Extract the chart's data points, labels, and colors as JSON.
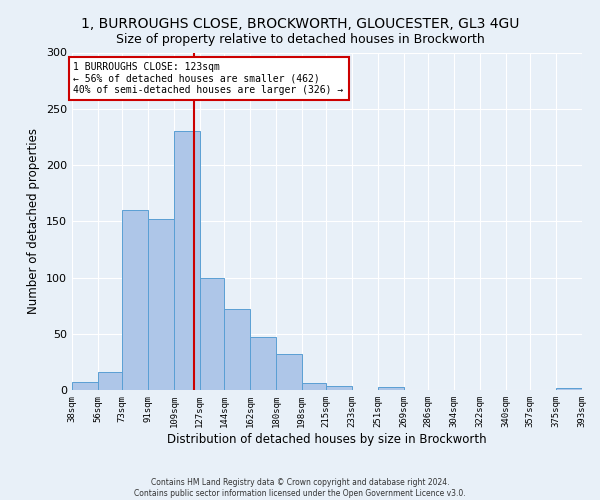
{
  "title1": "1, BURROUGHS CLOSE, BROCKWORTH, GLOUCESTER, GL3 4GU",
  "title2": "Size of property relative to detached houses in Brockworth",
  "xlabel": "Distribution of detached houses by size in Brockworth",
  "ylabel": "Number of detached properties",
  "footnote1": "Contains HM Land Registry data © Crown copyright and database right 2024.",
  "footnote2": "Contains public sector information licensed under the Open Government Licence v3.0.",
  "bin_labels": [
    "38sqm",
    "56sqm",
    "73sqm",
    "91sqm",
    "109sqm",
    "127sqm",
    "144sqm",
    "162sqm",
    "180sqm",
    "198sqm",
    "215sqm",
    "233sqm",
    "251sqm",
    "269sqm",
    "286sqm",
    "304sqm",
    "322sqm",
    "340sqm",
    "357sqm",
    "375sqm",
    "393sqm"
  ],
  "bin_edges": [
    38,
    56,
    73,
    91,
    109,
    127,
    144,
    162,
    180,
    198,
    215,
    233,
    251,
    269,
    286,
    304,
    322,
    340,
    357,
    375,
    393
  ],
  "bar_heights": [
    7,
    16,
    160,
    152,
    230,
    100,
    72,
    47,
    32,
    6,
    4,
    0,
    3,
    0,
    0,
    0,
    0,
    0,
    0,
    2,
    0
  ],
  "bar_color": "#aec6e8",
  "bar_edge_color": "#5a9fd4",
  "property_size": 123,
  "annotation_title": "1 BURROUGHS CLOSE: 123sqm",
  "annotation_line1": "← 56% of detached houses are smaller (462)",
  "annotation_line2": "40% of semi-detached houses are larger (326) →",
  "annotation_box_color": "#ffffff",
  "annotation_box_edge": "#cc0000",
  "vline_color": "#cc0000",
  "ylim": [
    0,
    300
  ],
  "yticks": [
    0,
    50,
    100,
    150,
    200,
    250,
    300
  ],
  "background_color": "#e8f0f8",
  "grid_color": "#ffffff",
  "title1_fontsize": 10,
  "title2_fontsize": 9,
  "xlabel_fontsize": 8.5,
  "ylabel_fontsize": 8.5
}
